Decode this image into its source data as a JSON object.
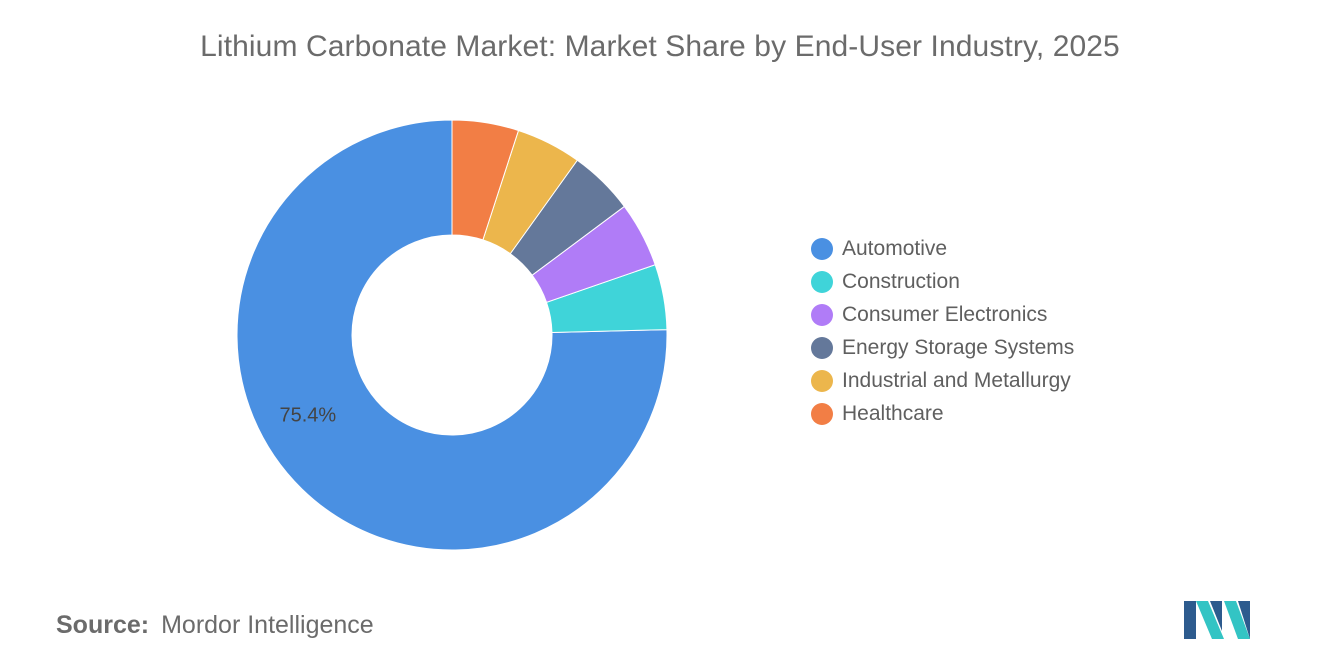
{
  "chart_data": {
    "type": "pie",
    "title": "Lithium Carbonate Market: Market Share by End-User Industry, 2025",
    "categories": [
      "Automotive",
      "Construction",
      "Consumer Electronics",
      "Energy Storage Systems",
      "Industrial and Metallurgy",
      "Healthcare"
    ],
    "values": [
      75.4,
      4.9,
      4.9,
      4.9,
      4.9,
      5.0
    ],
    "colors": [
      "#4a90e2",
      "#3fd4d9",
      "#b07cf7",
      "#64789a",
      "#ecb64c",
      "#f27e45"
    ],
    "data_labels": [
      "75.4%",
      "",
      "",
      "",
      "",
      ""
    ],
    "donut": true,
    "legend_position": "right"
  },
  "source": {
    "label": "Source:",
    "text": "Mordor Intelligence"
  },
  "logo": {
    "icon": "mordor-intelligence-logo-icon",
    "colors": [
      "#2d5b8e",
      "#33c4c4"
    ]
  }
}
